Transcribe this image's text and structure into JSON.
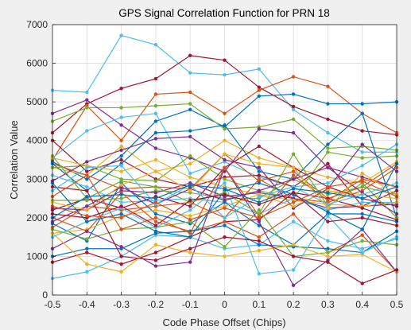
{
  "chart_data": {
    "type": "line",
    "title": "GPS Signal Correlation Function for PRN 18",
    "xlabel": "Code Phase Offset (Chips)",
    "ylabel": "Correlation Value",
    "xlim": [
      -0.5,
      0.5
    ],
    "ylim": [
      0,
      7000
    ],
    "xticks": [
      "-0.5",
      "-0.4",
      "-0.3",
      "-0.2",
      "-0.1",
      "0",
      "0.1",
      "0.2",
      "0.3",
      "0.4",
      "0.5"
    ],
    "yticks": [
      "0",
      "1000",
      "2000",
      "3000",
      "4000",
      "5000",
      "6000",
      "7000"
    ],
    "grid": true,
    "x": [
      -0.5,
      -0.4,
      -0.3,
      -0.2,
      -0.1,
      0,
      0.1,
      0.2,
      0.3,
      0.4,
      0.5
    ],
    "series": [
      {
        "color": "#4DBEEE",
        "values": [
          5300,
          5250,
          6720,
          6480,
          5750,
          5700,
          5850,
          4800,
          4200,
          3700,
          3700
        ]
      },
      {
        "color": "#A2142F",
        "values": [
          4200,
          4950,
          5350,
          5600,
          6200,
          6080,
          5380,
          4880,
          4550,
          4250,
          4150
        ]
      },
      {
        "color": "#D95319",
        "values": [
          3500,
          4900,
          4000,
          5200,
          5250,
          4700,
          5300,
          5650,
          5400,
          4700,
          4200
        ]
      },
      {
        "color": "#0072BD",
        "values": [
          3450,
          3000,
          3600,
          4500,
          4800,
          4350,
          5150,
          5200,
          4950,
          4950,
          5000
        ]
      },
      {
        "color": "#77AC30",
        "values": [
          4500,
          4850,
          4850,
          4900,
          4950,
          4300,
          4350,
          4550,
          3800,
          3850,
          3750
        ]
      },
      {
        "color": "#7E2F8E",
        "values": [
          4700,
          5050,
          4400,
          3800,
          3550,
          3200,
          4300,
          4200,
          3300,
          3050,
          2800
        ]
      },
      {
        "color": "#EDB120",
        "values": [
          3300,
          3100,
          3850,
          3200,
          3400,
          4000,
          3550,
          3300,
          3050,
          2900,
          3450
        ]
      },
      {
        "color": "#4DBEEE",
        "values": [
          3550,
          4250,
          4600,
          4700,
          3150,
          3450,
          3050,
          2800,
          2900,
          3350,
          3900
        ]
      },
      {
        "color": "#A2142F",
        "values": [
          4000,
          3200,
          3500,
          3000,
          2800,
          3050,
          3100,
          2800,
          3400,
          2300,
          2700
        ]
      },
      {
        "color": "#D95319",
        "values": [
          3400,
          3100,
          2750,
          2800,
          2750,
          3650,
          2950,
          3200,
          2500,
          2800,
          3400
        ]
      },
      {
        "color": "#0072BD",
        "values": [
          3400,
          2700,
          3400,
          4200,
          4250,
          4400,
          3200,
          3000,
          3900,
          4700,
          2000
        ]
      },
      {
        "color": "#77AC30",
        "values": [
          3300,
          3350,
          3000,
          2950,
          3600,
          3000,
          2700,
          2500,
          3700,
          3550,
          3600
        ]
      },
      {
        "color": "#7E2F8E",
        "values": [
          2950,
          3450,
          3750,
          4050,
          4100,
          3500,
          3300,
          2250,
          2750,
          3900,
          3200
        ]
      },
      {
        "color": "#EDB120",
        "values": [
          3550,
          3350,
          3200,
          3500,
          3050,
          2800,
          2600,
          2300,
          2700,
          2600,
          2500
        ]
      },
      {
        "color": "#4DBEEE",
        "values": [
          3100,
          2800,
          2400,
          2450,
          2500,
          2400,
          2100,
          2500,
          2200,
          2400,
          2400
        ]
      },
      {
        "color": "#A2142F",
        "values": [
          2200,
          2500,
          2250,
          2550,
          2300,
          3300,
          3850,
          3300,
          2800,
          2500,
          2300
        ]
      },
      {
        "color": "#D95319",
        "values": [
          1750,
          2300,
          2200,
          2300,
          2400,
          2000,
          3000,
          2500,
          2400,
          2700,
          3300
        ]
      },
      {
        "color": "#0072BD",
        "values": [
          1850,
          1400,
          2900,
          2100,
          1850,
          2400,
          1800,
          1300,
          2100,
          2100,
          1900
        ]
      },
      {
        "color": "#77AC30",
        "values": [
          2450,
          2450,
          2500,
          2700,
          2650,
          2500,
          2500,
          3000,
          2600,
          2800,
          2600
        ]
      },
      {
        "color": "#7E2F8E",
        "values": [
          2250,
          2200,
          2700,
          2650,
          2900,
          2550,
          2650,
          2500,
          2250,
          2300,
          2350
        ]
      },
      {
        "color": "#EDB120",
        "values": [
          1600,
          1700,
          2050,
          2200,
          2050,
          2300,
          2600,
          2450,
          2350,
          2300,
          2400
        ]
      },
      {
        "color": "#4DBEEE",
        "values": [
          430,
          600,
          1000,
          1550,
          1500,
          1200,
          1300,
          1900,
          1400,
          1200,
          1450
        ]
      },
      {
        "color": "#A2142F",
        "values": [
          850,
          1100,
          800,
          1100,
          1500,
          1900,
          1950,
          2650,
          2500,
          2250,
          1950
        ]
      },
      {
        "color": "#D95319",
        "values": [
          2000,
          1650,
          2650,
          1900,
          1650,
          1900,
          1500,
          2100,
          1100,
          1550,
          600
        ]
      },
      {
        "color": "#0072BD",
        "values": [
          1000,
          1200,
          1200,
          1600,
          1650,
          1800,
          1300,
          1250,
          1200,
          1100,
          1650
        ]
      },
      {
        "color": "#77AC30",
        "values": [
          1700,
          1450,
          1700,
          1750,
          1900,
          1250,
          2200,
          1000,
          1100,
          1400,
          1300
        ]
      },
      {
        "color": "#7E2F8E",
        "values": [
          1200,
          1650,
          1250,
          750,
          850,
          3300,
          1900,
          250,
          900,
          1700,
          600
        ]
      },
      {
        "color": "#EDB120",
        "values": [
          1600,
          800,
          600,
          1300,
          1100,
          1000,
          1150,
          1300,
          1000,
          1050,
          600
        ]
      },
      {
        "color": "#4DBEEE",
        "values": [
          1500,
          1900,
          2250,
          1750,
          2200,
          2900,
          550,
          650,
          2050,
          1100,
          1500
        ]
      },
      {
        "color": "#A2142F",
        "values": [
          2800,
          2700,
          1000,
          900,
          1200,
          1500,
          1400,
          1000,
          850,
          300,
          650
        ]
      },
      {
        "color": "#D95319",
        "values": [
          2550,
          3100,
          1700,
          2000,
          1600,
          3300,
          2050,
          3100,
          2450,
          3000,
          2800
        ]
      },
      {
        "color": "#0072BD",
        "values": [
          2900,
          1900,
          2100,
          1650,
          1500,
          2700,
          2900,
          2600,
          2150,
          1700,
          3400
        ]
      },
      {
        "color": "#77AC30",
        "values": [
          3600,
          2500,
          2950,
          2800,
          2400,
          2650,
          2100,
          3650,
          2300,
          2900,
          2000
        ]
      },
      {
        "color": "#7E2F8E",
        "values": [
          1900,
          2300,
          2800,
          2350,
          2750,
          2450,
          2700,
          3000,
          3300,
          2650,
          2100
        ]
      },
      {
        "color": "#EDB120",
        "values": [
          2400,
          2200,
          2850,
          3200,
          2700,
          3650,
          3400,
          3300,
          2250,
          3150,
          2600
        ]
      },
      {
        "color": "#4DBEEE",
        "values": [
          2700,
          3300,
          3350,
          2350,
          2850,
          2000,
          2550,
          2800,
          2350,
          2600,
          2900
        ]
      },
      {
        "color": "#A2142F",
        "values": [
          2100,
          2000,
          2300,
          1800,
          2450,
          2600,
          2350,
          2650,
          1900,
          2000,
          1800
        ]
      },
      {
        "color": "#D95319",
        "values": [
          2300,
          2050,
          2000,
          2400,
          1950,
          2250,
          2000,
          2400,
          2800,
          2950,
          2550
        ]
      },
      {
        "color": "#0072BD",
        "values": [
          2000,
          2550,
          2600,
          2500,
          2850,
          2750,
          2400,
          2750,
          2650,
          2500,
          2800
        ]
      }
    ]
  }
}
